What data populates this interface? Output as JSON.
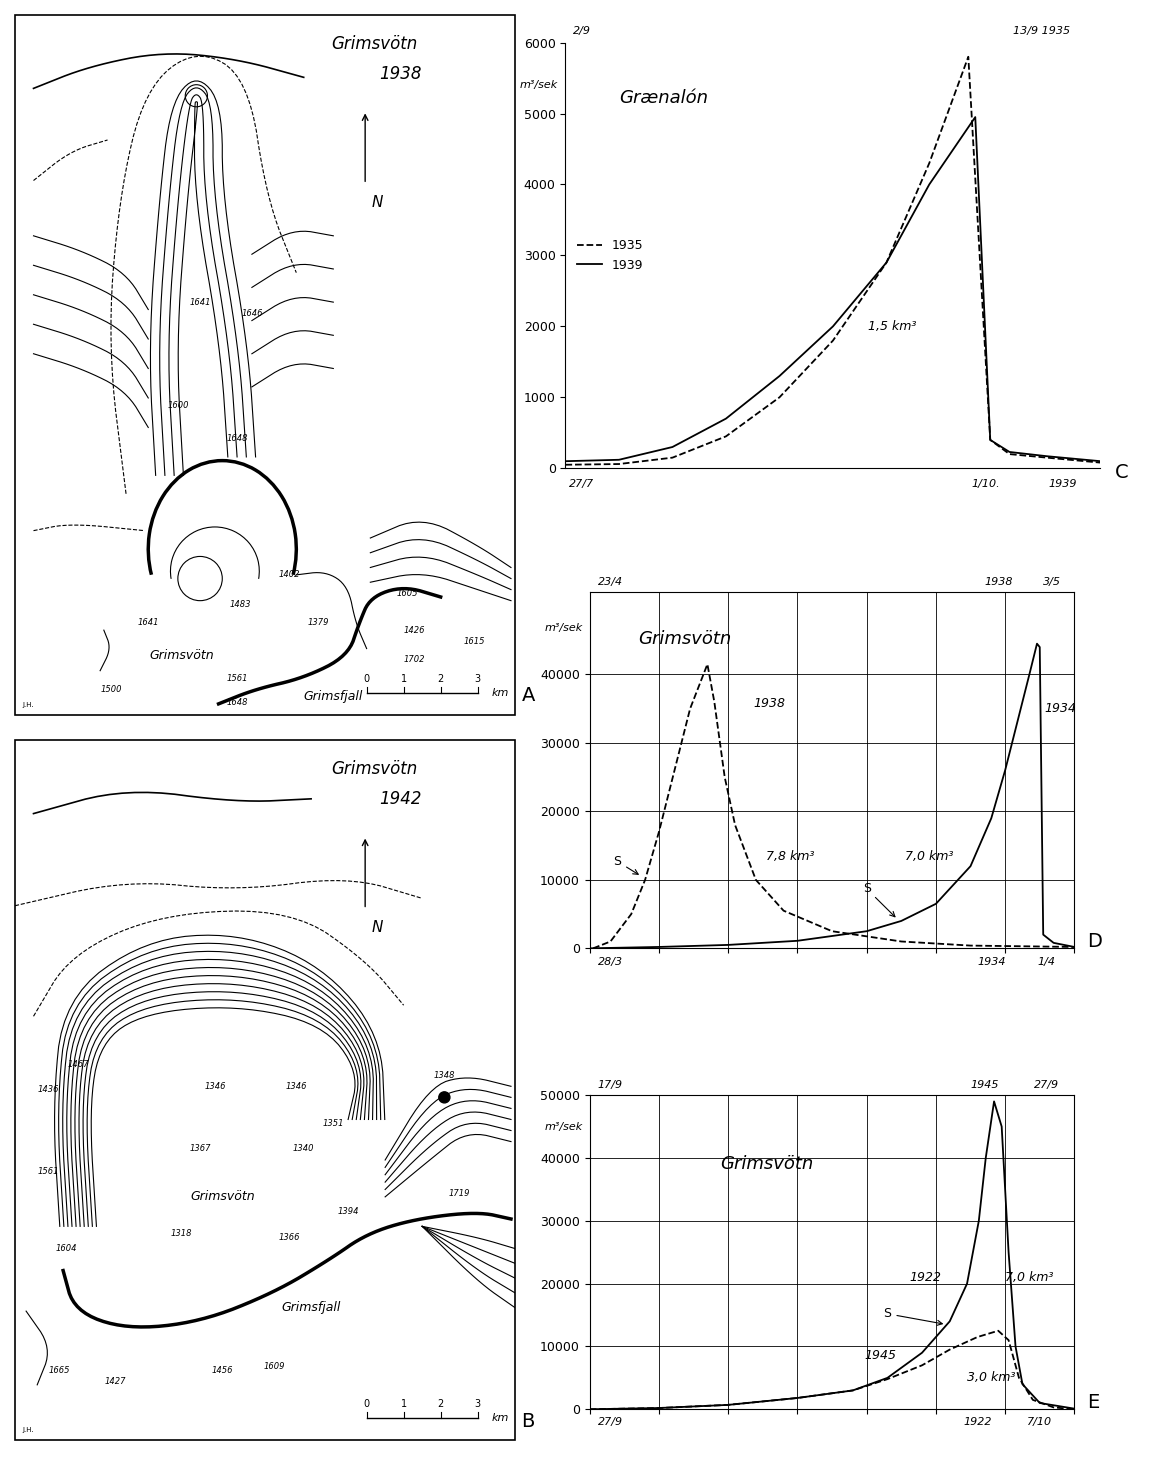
{
  "maps": [
    {
      "panel": "A",
      "type": "map",
      "title": "Grimsvötn",
      "year": "1938",
      "north": "N",
      "scale_ticks": [
        0,
        1,
        2,
        3
      ],
      "scale_unit": "km",
      "credit": "J.H.",
      "labels": [
        {
          "text": "Grimsvötn",
          "x": 4.5,
          "y": 1.6,
          "kind": "name"
        },
        {
          "text": "Grimsfjall",
          "x": 8.6,
          "y": 0.5,
          "kind": "name"
        },
        {
          "text": "1641",
          "x": 5.0,
          "y": 11.2
        },
        {
          "text": "1646",
          "x": 6.4,
          "y": 10.9
        },
        {
          "text": "1600",
          "x": 4.4,
          "y": 8.4
        },
        {
          "text": "1648",
          "x": 6.0,
          "y": 7.5
        },
        {
          "text": "1641",
          "x": 3.6,
          "y": 2.5
        },
        {
          "text": "1483",
          "x": 6.1,
          "y": 3.0
        },
        {
          "text": "1402",
          "x": 7.4,
          "y": 3.8
        },
        {
          "text": "1379",
          "x": 8.2,
          "y": 2.5
        },
        {
          "text": "1605",
          "x": 10.6,
          "y": 3.3
        },
        {
          "text": "1426",
          "x": 10.8,
          "y": 2.3
        },
        {
          "text": "1702",
          "x": 10.8,
          "y": 1.5
        },
        {
          "text": "1615",
          "x": 12.4,
          "y": 2.0
        },
        {
          "text": "1561",
          "x": 6.0,
          "y": 1.0
        },
        {
          "text": "1648",
          "x": 6.0,
          "y": 0.35
        },
        {
          "text": "1500",
          "x": 2.6,
          "y": 0.7
        }
      ]
    },
    {
      "panel": "B",
      "type": "map",
      "title": "Grimsvötn",
      "year": "1942",
      "north": "N",
      "scale_ticks": [
        0,
        1,
        2,
        3
      ],
      "scale_unit": "km",
      "credit": "J.H.",
      "labels": [
        {
          "text": "Grimsvötn",
          "x": 5.6,
          "y": 6.6,
          "kind": "name"
        },
        {
          "text": "Grimsfjall",
          "x": 8.0,
          "y": 3.6,
          "kind": "name"
        },
        {
          "text": "1467",
          "x": 1.7,
          "y": 10.2
        },
        {
          "text": "1436",
          "x": 0.9,
          "y": 9.5
        },
        {
          "text": "1346",
          "x": 5.4,
          "y": 9.6
        },
        {
          "text": "1346",
          "x": 7.6,
          "y": 9.6
        },
        {
          "text": "1348",
          "x": 11.6,
          "y": 9.9
        },
        {
          "text": "1351",
          "x": 8.6,
          "y": 8.6
        },
        {
          "text": "1340",
          "x": 7.8,
          "y": 7.9
        },
        {
          "text": "1367",
          "x": 5.0,
          "y": 7.9
        },
        {
          "text": "1561",
          "x": 0.9,
          "y": 7.3
        },
        {
          "text": "1318",
          "x": 4.5,
          "y": 5.6
        },
        {
          "text": "1366",
          "x": 7.4,
          "y": 5.5
        },
        {
          "text": "1604",
          "x": 1.4,
          "y": 5.2
        },
        {
          "text": "1394",
          "x": 9.0,
          "y": 6.2
        },
        {
          "text": "1719",
          "x": 12.0,
          "y": 6.7
        },
        {
          "text": "1665",
          "x": 1.2,
          "y": 1.9
        },
        {
          "text": "1427",
          "x": 2.7,
          "y": 1.6
        },
        {
          "text": "1456",
          "x": 5.6,
          "y": 1.9
        },
        {
          "text": "1609",
          "x": 7.0,
          "y": 2.0
        }
      ]
    }
  ],
  "chart_data": [
    {
      "panel": "C",
      "type": "line",
      "title": "Grænalón",
      "y_label": "m³/sek",
      "xlim": [
        0,
        10
      ],
      "xticks": [],
      "ylim": [
        0,
        6000
      ],
      "yticks": [
        0,
        1000,
        2000,
        3000,
        4000,
        5000,
        6000
      ],
      "tick_labels": "y",
      "grid": false,
      "legend": "center left",
      "date_labels": {
        "top": [
          {
            "x": 0.3,
            "text": "2/9"
          },
          {
            "x": 8.9,
            "text": "13/9 1935"
          }
        ],
        "bottom": [
          {
            "x": 0.3,
            "text": "27/7"
          },
          {
            "x": 7.85,
            "text": "1/10."
          },
          {
            "x": 9.3,
            "text": "1939"
          }
        ]
      },
      "annotations": [
        {
          "text": "1,5 km³",
          "x": 6.1,
          "y": 2000
        }
      ],
      "series": [
        {
          "name": "1935",
          "color": "#000000",
          "line_style": "dashed",
          "x": [
            0,
            1,
            2,
            3,
            4,
            5,
            6,
            6.8,
            7.53,
            7.94,
            8.3,
            9,
            10
          ],
          "values": [
            50,
            60,
            150,
            450,
            1000,
            1800,
            2900,
            4300,
            5800,
            400,
            200,
            150,
            80
          ]
        },
        {
          "name": "1939",
          "color": "#000000",
          "line_style": "solid",
          "x": [
            0,
            1,
            2,
            3,
            4,
            5,
            6,
            6.8,
            7.66,
            7.94,
            8.3,
            9,
            10
          ],
          "values": [
            100,
            120,
            300,
            700,
            1300,
            2000,
            2900,
            4000,
            4950,
            400,
            230,
            170,
            100
          ]
        }
      ]
    },
    {
      "panel": "D",
      "type": "line",
      "title": "Grimsvötn",
      "y_label": "m³/sek",
      "xlim": [
        0,
        7
      ],
      "xticks": [
        0,
        1,
        2,
        3,
        4,
        5,
        6,
        7
      ],
      "ylim": [
        0,
        52000
      ],
      "yticks": [
        0,
        10000,
        20000,
        30000,
        40000
      ],
      "tick_labels": "y",
      "grid": true,
      "date_labels": {
        "top": [
          {
            "x": 0.3,
            "text": "23/4"
          },
          {
            "x": 5.9,
            "text": "1938"
          },
          {
            "x": 6.67,
            "text": "3/5"
          }
        ],
        "bottom": [
          {
            "x": 0.3,
            "text": "28/3"
          },
          {
            "x": 5.8,
            "text": "1934"
          },
          {
            "x": 6.6,
            "text": "1/4"
          }
        ]
      },
      "annotations": [
        {
          "text": "1938",
          "x": 2.6,
          "y": 35800
        },
        {
          "text": "7,8 km³",
          "x": 2.9,
          "y": 13400
        },
        {
          "text": "S",
          "x": 0.4,
          "y": 12700,
          "arrow_to": [
            0.75,
            10500
          ]
        },
        {
          "text": "7,0 km³",
          "x": 4.9,
          "y": 13400
        },
        {
          "text": "S",
          "x": 4.0,
          "y": 8700,
          "arrow_to": [
            4.45,
            4200
          ]
        },
        {
          "text": "1934",
          "x": 6.8,
          "y": 35000
        }
      ],
      "series": [
        {
          "color": "#000000",
          "line_style": "dashed",
          "x": [
            0.05,
            0.3,
            0.6,
            0.8,
            1.0,
            1.2,
            1.45,
            1.7,
            1.8,
            1.95,
            2.1,
            2.4,
            2.8,
            3.5,
            4.5,
            5.5,
            7
          ],
          "values": [
            0,
            1000,
            5000,
            10000,
            17000,
            25000,
            35000,
            41500,
            36000,
            25000,
            18000,
            10000,
            5500,
            2500,
            1000,
            400,
            200
          ]
        },
        {
          "color": "#000000",
          "line_style": "solid",
          "x": [
            0,
            1,
            2,
            3,
            4,
            4.5,
            5,
            5.5,
            5.8,
            6.0,
            6.2,
            6.35,
            6.46,
            6.5,
            6.55,
            6.7,
            7
          ],
          "values": [
            0,
            200,
            500,
            1100,
            2500,
            4000,
            6500,
            12000,
            19000,
            26000,
            34000,
            40000,
            44500,
            44000,
            2000,
            800,
            200
          ]
        }
      ]
    },
    {
      "panel": "E",
      "type": "line",
      "title": "Grimsvötn",
      "y_label": "m³/sek",
      "xlim": [
        0,
        7
      ],
      "xticks": [
        0,
        1,
        2,
        3,
        4,
        5,
        6,
        7
      ],
      "ylim": [
        0,
        50000
      ],
      "yticks": [
        0,
        10000,
        20000,
        30000,
        40000,
        50000
      ],
      "tick_labels": "y",
      "grid": true,
      "date_labels": {
        "top": [
          {
            "x": 0.3,
            "text": "17/9"
          },
          {
            "x": 5.7,
            "text": "1945"
          },
          {
            "x": 6.6,
            "text": "27/9"
          }
        ],
        "bottom": [
          {
            "x": 0.3,
            "text": "27/9"
          },
          {
            "x": 5.6,
            "text": "1922"
          },
          {
            "x": 6.5,
            "text": "7/10"
          }
        ]
      },
      "annotations": [
        {
          "text": "1922",
          "x": 4.85,
          "y": 21000
        },
        {
          "text": "7,0 km³",
          "x": 6.35,
          "y": 21000
        },
        {
          "text": "S",
          "x": 4.3,
          "y": 15200,
          "arrow_to": [
            5.15,
            13500
          ]
        },
        {
          "text": "1945",
          "x": 4.2,
          "y": 8500
        },
        {
          "text": "3,0 km³",
          "x": 5.8,
          "y": 5100
        }
      ],
      "series": [
        {
          "color": "#000000",
          "line_style": "solid",
          "x": [
            0,
            1,
            2,
            3,
            3.8,
            4.3,
            4.8,
            5.2,
            5.45,
            5.62,
            5.72,
            5.84,
            5.95,
            6.05,
            6.15,
            6.25,
            6.5,
            7
          ],
          "values": [
            0,
            200,
            700,
            1800,
            3000,
            5000,
            9000,
            14000,
            20000,
            30000,
            40000,
            49000,
            45000,
            25000,
            10000,
            4000,
            1000,
            100
          ]
        },
        {
          "color": "#000000",
          "line_style": "dashed",
          "x": [
            0,
            1,
            2,
            3,
            3.8,
            4.3,
            4.8,
            5.2,
            5.6,
            5.9,
            6.05,
            6.2,
            6.4,
            6.7,
            7
          ],
          "values": [
            0,
            200,
            700,
            1800,
            3000,
            4800,
            7000,
            9500,
            11500,
            12500,
            11000,
            5000,
            1500,
            300,
            0
          ]
        }
      ]
    }
  ]
}
